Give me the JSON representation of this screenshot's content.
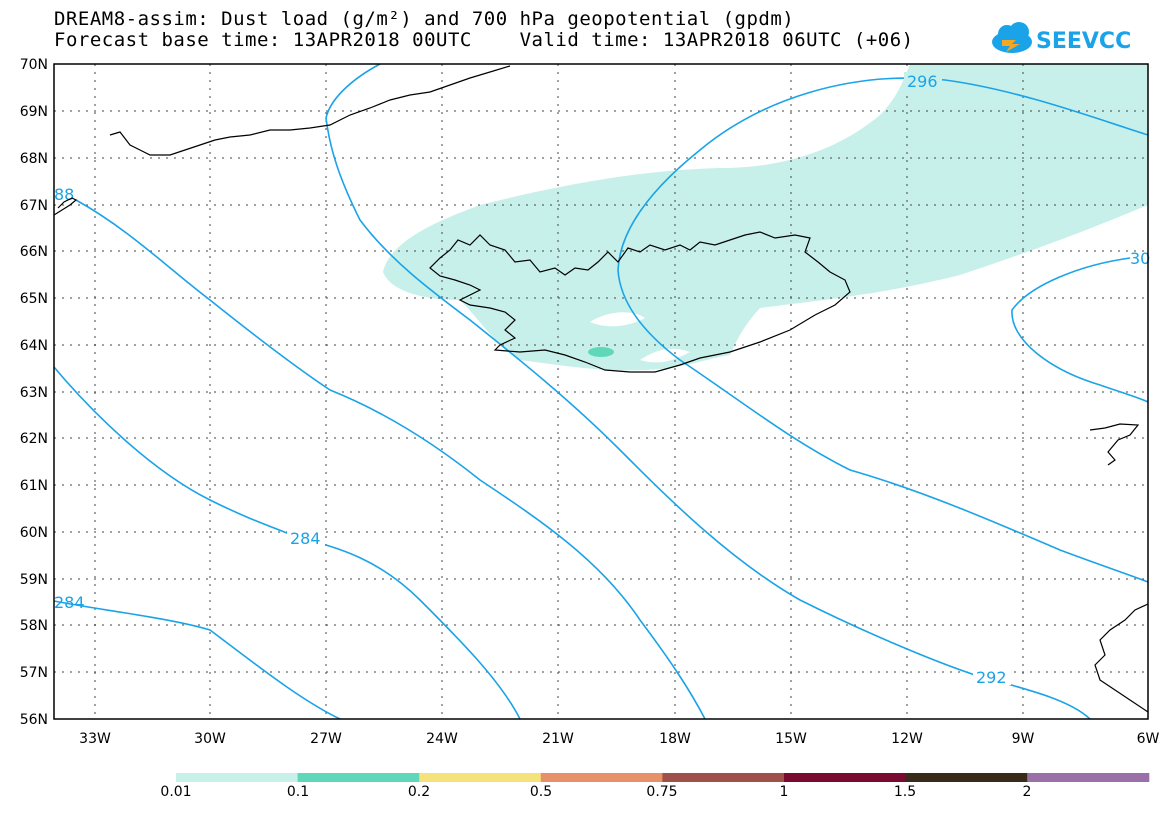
{
  "title": {
    "line1": "DREAM8-assim: Dust load (g/m²) and 700 hPa geopotential (gpdm)",
    "line2": "Forecast base time: 13APR2018 00UTC    Valid time: 13APR2018 06UTC (+06)"
  },
  "logo": {
    "text": "SEEVCCC",
    "icon": "cloud-icon",
    "color": "#1aa3e8"
  },
  "map": {
    "lat_labels": [
      "70N",
      "69N",
      "68N",
      "67N",
      "66N",
      "65N",
      "64N",
      "63N",
      "62N",
      "61N",
      "60N",
      "59N",
      "58N",
      "57N",
      "56N"
    ],
    "lon_labels": [
      "33W",
      "30W",
      "27W",
      "24W",
      "21W",
      "18W",
      "15W",
      "12W",
      "9W",
      "6W"
    ],
    "lat_range": [
      56,
      70
    ],
    "lon_range": [
      -34.5,
      -6
    ],
    "contour_color": "#1aa3e8",
    "contour_labels": [
      "296",
      "284",
      "292",
      "284",
      "30",
      "88"
    ],
    "dust_color": "#c7f0ea",
    "dust_color_strong": "#5ed8b8"
  },
  "colorbar": {
    "colors": [
      "#c7f0ea",
      "#5ed8b8",
      "#f5e27a",
      "#e8906a",
      "#a0504a",
      "#7a0a30",
      "#3a2a1a",
      "#9a70a8"
    ],
    "labels": [
      "0.01",
      "0.1",
      "0.2",
      "0.5",
      "0.75",
      "1",
      "1.5",
      "2"
    ]
  }
}
